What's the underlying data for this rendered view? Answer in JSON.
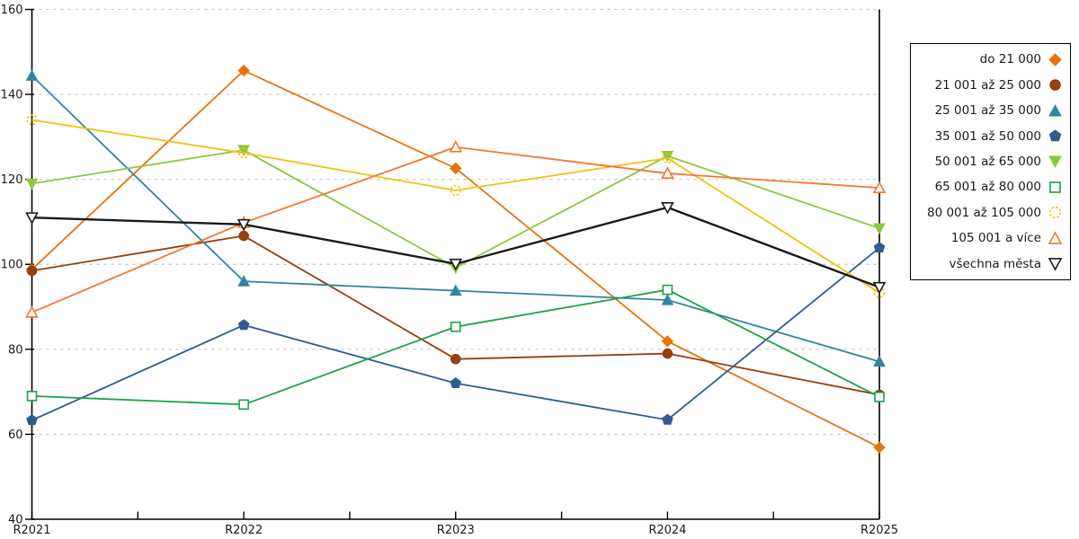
{
  "chart_data": {
    "type": "line",
    "title": "",
    "xlabel": "",
    "ylabel": "",
    "x_categories": [
      "R2021",
      "R2022",
      "R2023",
      "R2024",
      "R2025"
    ],
    "y_ticks": [
      40,
      60,
      80,
      100,
      120,
      140,
      160
    ],
    "ylim": [
      40,
      160
    ],
    "grid": "horizontal-dashed",
    "gridline_color": "#c2c2c2",
    "axis_color": "#000000",
    "legend_position": "right-outside-box",
    "series": [
      {
        "name": "do 21 000",
        "color": "#e8720c",
        "marker": "diamond",
        "marker_style": "solid",
        "values": [
          98.8,
          145.6,
          122.6,
          81.9,
          56.9
        ]
      },
      {
        "name": "21 001 až 25 000",
        "color": "#963f10",
        "marker": "circle",
        "marker_style": "solid",
        "values": [
          98.5,
          106.7,
          77.7,
          79.0,
          69.3
        ]
      },
      {
        "name": "25 001 až 35 000",
        "color": "#31859c",
        "marker": "triangle-up",
        "marker_style": "solid",
        "values": [
          144.4,
          96.0,
          93.8,
          91.6,
          77.1
        ]
      },
      {
        "name": "35 001 až 50 000",
        "color": "#2f5b90",
        "marker": "pentagon",
        "marker_style": "solid",
        "values": [
          63.3,
          85.7,
          72.0,
          63.4,
          103.9
        ]
      },
      {
        "name": "50 001 až 65 000",
        "color": "#8dc63f",
        "marker": "triangle-down",
        "marker_style": "solid",
        "values": [
          119.0,
          126.9,
          99.2,
          125.5,
          108.5
        ]
      },
      {
        "name": "65 001 až 80 000",
        "color": "#1aa34a",
        "marker": "square",
        "marker_style": "open",
        "values": [
          69.0,
          67.0,
          85.3,
          94.0,
          68.8
        ]
      },
      {
        "name": "80 001 až 105 000",
        "color": "#f2c00e",
        "marker": "circle",
        "marker_style": "open-dashed",
        "values": [
          134.0,
          126.2,
          117.4,
          125.0,
          93.3
        ]
      },
      {
        "name": "105 001 a více",
        "color": "#f4772e",
        "marker": "triangle-up",
        "marker_style": "open",
        "values": [
          88.7,
          109.8,
          127.6,
          121.4,
          118.0
        ]
      },
      {
        "name": "všechna města",
        "color": "#1a1a1a",
        "marker": "triangle-down",
        "marker_style": "open",
        "values": [
          111.0,
          109.4,
          100.1,
          113.4,
          94.6
        ]
      }
    ]
  }
}
